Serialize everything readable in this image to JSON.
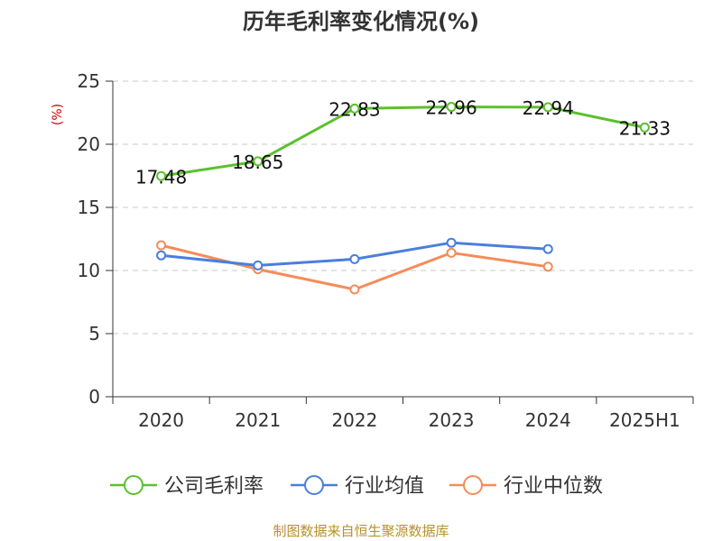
{
  "chart_data": {
    "type": "line",
    "title": "历年毛利率变化情况(%)",
    "ylabel": "(%)",
    "ylim": [
      0,
      25
    ],
    "yticks": [
      0,
      5,
      10,
      15,
      20,
      25
    ],
    "grid": true,
    "legend_placement": "bottom",
    "categories": [
      "2020",
      "2021",
      "2022",
      "2023",
      "2024",
      "2025H1"
    ],
    "series": [
      {
        "name": "公司毛利率",
        "color": "#5cc02e",
        "values": [
          17.48,
          18.65,
          22.83,
          22.96,
          22.94,
          21.33
        ],
        "labels": [
          "17.48",
          "18.65",
          "22.83",
          "22.96",
          "22.94",
          "21.33"
        ]
      },
      {
        "name": "行业均值",
        "color": "#4a7fdc",
        "values": [
          11.2,
          10.4,
          10.9,
          12.2,
          11.7,
          null
        ]
      },
      {
        "name": "行业中位数",
        "color": "#f48c5a",
        "values": [
          12.0,
          10.1,
          8.5,
          11.4,
          10.3,
          null
        ]
      }
    ]
  },
  "footer": {
    "source": "制图数据来自恒生聚源数据库"
  }
}
